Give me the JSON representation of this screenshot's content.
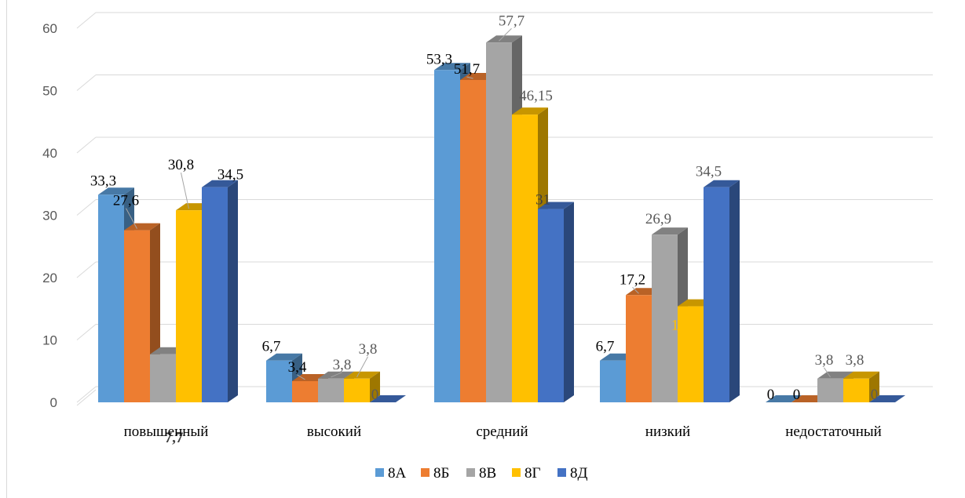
{
  "chart_data": {
    "type": "bar",
    "style": "3d-clustered-column",
    "categories": [
      "повышенный",
      "высокий",
      "средний",
      "низкий",
      "недостаточный"
    ],
    "series": [
      {
        "name": "8А",
        "color": "#5B9BD5",
        "values": [
          33.3,
          6.7,
          53.3,
          6.7,
          0
        ]
      },
      {
        "name": "8Б",
        "color": "#ED7D31",
        "values": [
          27.6,
          3.4,
          51.7,
          17.2,
          0
        ]
      },
      {
        "name": "8В",
        "color": "#A5A5A5",
        "values": [
          7.7,
          3.8,
          57.7,
          26.9,
          3.8
        ]
      },
      {
        "name": "8Г",
        "color": "#FFC000",
        "values": [
          30.8,
          3.8,
          46.15,
          15.4,
          3.8
        ]
      },
      {
        "name": "8Д",
        "color": "#4472C4",
        "values": [
          34.5,
          0,
          31,
          34.5,
          0
        ]
      }
    ],
    "data_labels": [
      [
        "33,3",
        "6,7",
        "53,3",
        "6,7",
        "0"
      ],
      [
        "27,6",
        "3,4",
        "51,7",
        "17,2",
        "0"
      ],
      [
        "7,7",
        "3,8",
        "57,7",
        "26,9",
        "3,8"
      ],
      [
        "30,8",
        "3,8",
        "46,15",
        "15,4",
        "3,8"
      ],
      [
        "34,5",
        "0",
        "31",
        "34,5",
        "0"
      ]
    ],
    "y_ticks": [
      "0",
      "10",
      "20",
      "30",
      "40",
      "50",
      "60"
    ],
    "ylim": [
      0,
      60
    ],
    "grid": true,
    "legend_position": "bottom"
  }
}
